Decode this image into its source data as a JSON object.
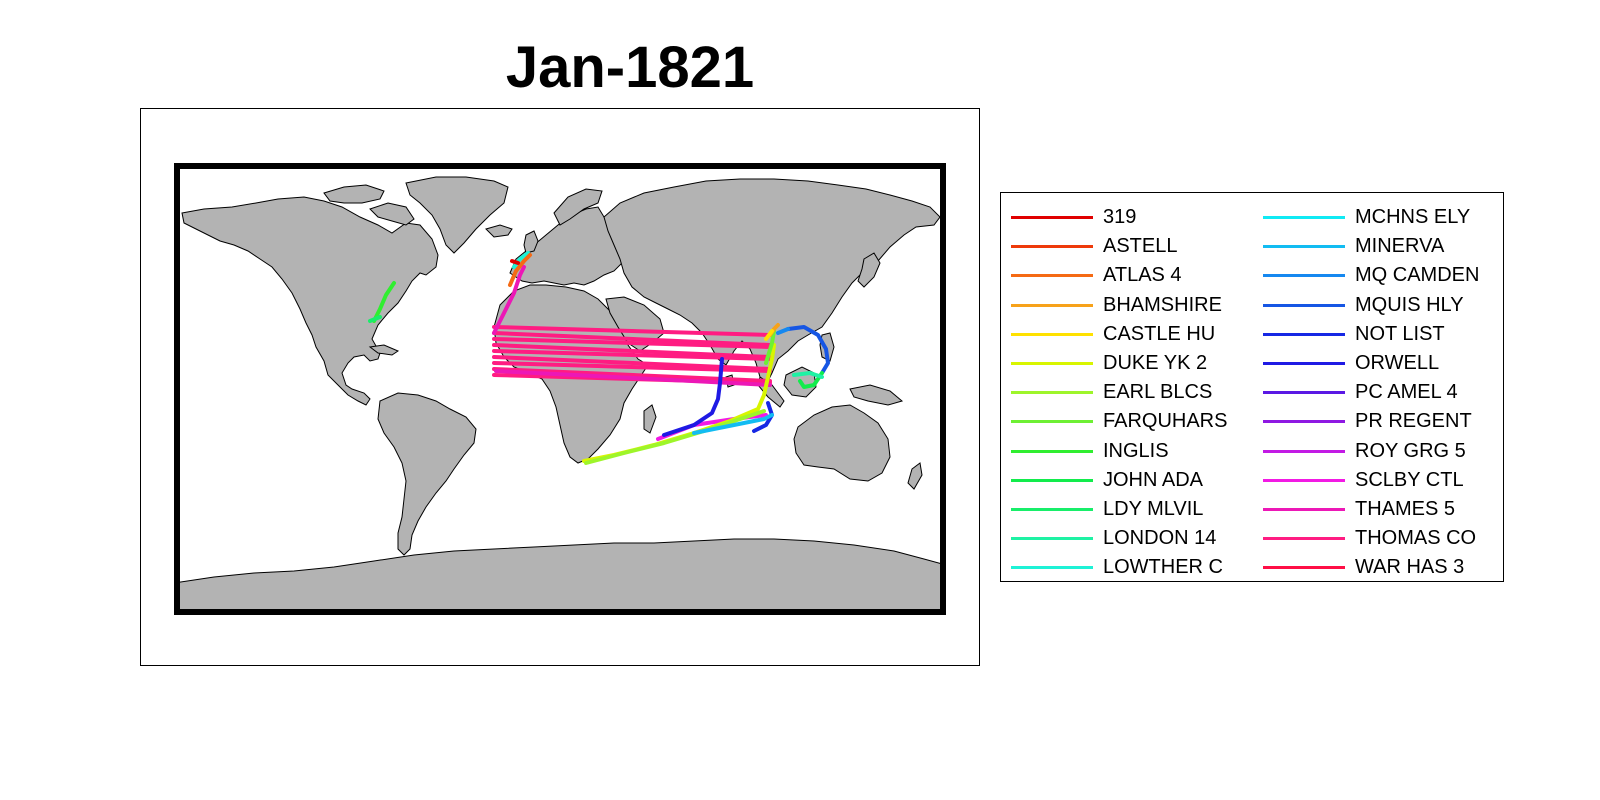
{
  "title": "Jan-1821",
  "map": {
    "land_color": "#b3b3b3",
    "ocean_color": "#ffffff",
    "frame_color": "#000000",
    "continents": [
      "north-america",
      "south-america",
      "greenland",
      "europe",
      "africa",
      "asia",
      "australia",
      "antarctica"
    ]
  },
  "legend": {
    "placement": "right",
    "columns": [
      [
        {
          "label": "319",
          "color": "#e00000"
        },
        {
          "label": "ASTELL",
          "color": "#ee3a0a"
        },
        {
          "label": "ATLAS 4",
          "color": "#f56a14"
        },
        {
          "label": "BHAMSHIRE",
          "color": "#f7a21a"
        },
        {
          "label": "CASTLE HU",
          "color": "#ffe100"
        },
        {
          "label": "DUKE YK 2",
          "color": "#d8f500"
        },
        {
          "label": "EARL BLCS",
          "color": "#9ef52a"
        },
        {
          "label": "FARQUHARS",
          "color": "#6ef034"
        },
        {
          "label": "INGLIS",
          "color": "#30ee30"
        },
        {
          "label": "JOHN ADA",
          "color": "#12ec4c"
        },
        {
          "label": "LDY MLVIL",
          "color": "#18ee6a"
        },
        {
          "label": "LONDON 14",
          "color": "#1ef2a4"
        },
        {
          "label": "LOWTHER C",
          "color": "#1ef2d6"
        }
      ],
      [
        {
          "label": "MCHNS ELY",
          "color": "#10eaf4"
        },
        {
          "label": "MINERVA",
          "color": "#12bcf2"
        },
        {
          "label": "MQ CAMDEN",
          "color": "#1588f0"
        },
        {
          "label": "MQUIS HLY",
          "color": "#1656e4"
        },
        {
          "label": "NOT LIST",
          "color": "#1628e4"
        },
        {
          "label": "ORWELL",
          "color": "#1f1ae4"
        },
        {
          "label": "PC AMEL 4",
          "color": "#5a18e4"
        },
        {
          "label": "PR REGENT",
          "color": "#8e18e2"
        },
        {
          "label": "ROY GRG 5",
          "color": "#c21ae4"
        },
        {
          "label": "SCLBY CTL",
          "color": "#f21ae4"
        },
        {
          "label": "THAMES 5",
          "color": "#ec18b6"
        },
        {
          "label": "THOMAS CO",
          "color": "#ff1c82"
        },
        {
          "label": "WAR HAS 3",
          "color": "#ff0f46"
        }
      ]
    ]
  }
}
